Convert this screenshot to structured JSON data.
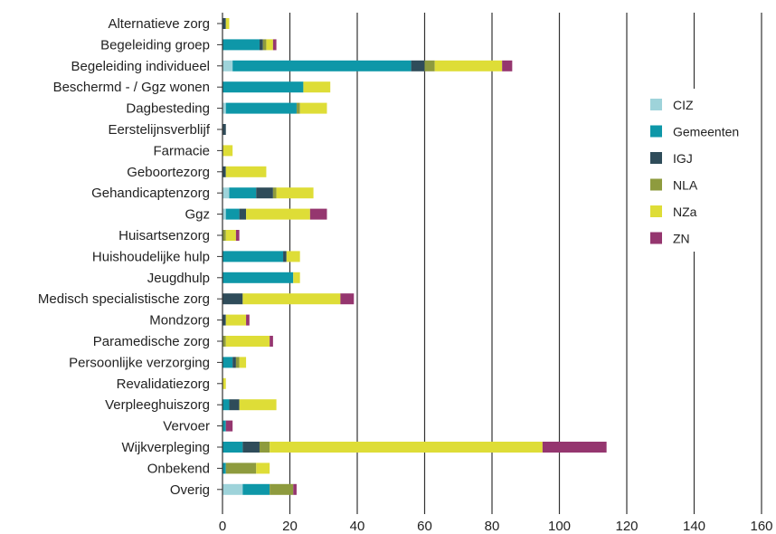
{
  "chart_data": {
    "type": "bar",
    "orientation": "horizontal",
    "stacked": true,
    "xlim": [
      0,
      160
    ],
    "xticks": [
      0,
      20,
      40,
      60,
      80,
      100,
      120,
      140,
      160
    ],
    "grid": "vertical",
    "legend_position": "right",
    "categories": [
      "Alternatieve zorg",
      "Begeleiding groep",
      "Begeleiding individueel",
      "Beschermd - / Ggz wonen",
      "Dagbesteding",
      "Eerstelijnsverblijf",
      "Farmacie",
      "Geboortezorg",
      "Gehandicaptenzorg",
      "Ggz",
      "Huisartsenzorg",
      "Huishoudelijke hulp",
      "Jeugdhulp",
      "Medisch specialistische zorg",
      "Mondzorg",
      "Paramedische zorg",
      "Persoonlijke verzorging",
      "Revalidatiezorg",
      "Verpleeghuiszorg",
      "Vervoer",
      "Wijkverpleging",
      "Onbekend",
      "Overig"
    ],
    "series": [
      {
        "name": "CIZ",
        "color": "#9ed3da",
        "values": [
          0,
          0,
          3,
          0,
          1,
          0,
          0,
          0,
          2,
          1,
          0,
          0,
          0,
          0,
          0,
          0,
          0,
          0,
          0,
          0,
          0,
          0,
          6
        ]
      },
      {
        "name": "Gemeenten",
        "color": "#0e97a8",
        "values": [
          0,
          11,
          53,
          24,
          21,
          0,
          0,
          0,
          8,
          4,
          0,
          18,
          21,
          0,
          0,
          0,
          3,
          0,
          2,
          1,
          6,
          1,
          8
        ]
      },
      {
        "name": "IGJ",
        "color": "#2f4c5a",
        "values": [
          1,
          1,
          4,
          0,
          0,
          1,
          0,
          1,
          5,
          2,
          0,
          1,
          0,
          6,
          1,
          0,
          1,
          0,
          3,
          0,
          5,
          0,
          0
        ]
      },
      {
        "name": "NLA",
        "color": "#8e9b3e",
        "values": [
          0,
          1,
          3,
          0,
          1,
          0,
          0,
          0,
          1,
          0,
          1,
          0,
          0,
          0,
          0,
          1,
          1,
          0,
          0,
          0,
          3,
          9,
          7
        ]
      },
      {
        "name": "NZa",
        "color": "#dedd37",
        "values": [
          1,
          2,
          20,
          8,
          8,
          0,
          3,
          12,
          11,
          19,
          3,
          4,
          2,
          29,
          6,
          13,
          2,
          1,
          11,
          0,
          81,
          4,
          0
        ]
      },
      {
        "name": "ZN",
        "color": "#95366f",
        "values": [
          0,
          1,
          3,
          0,
          0,
          0,
          0,
          0,
          0,
          5,
          1,
          0,
          0,
          4,
          1,
          1,
          0,
          0,
          0,
          2,
          19,
          0,
          1
        ]
      }
    ]
  }
}
